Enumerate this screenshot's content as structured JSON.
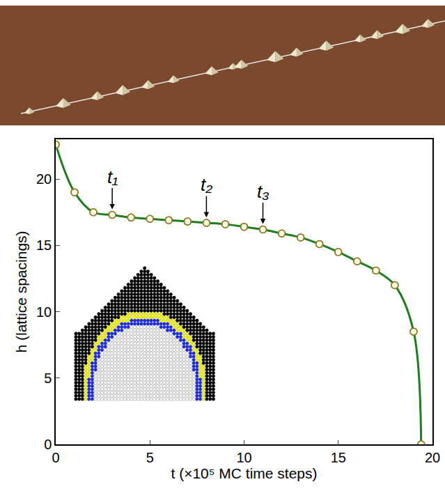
{
  "chart_data": {
    "type": "line",
    "x_label": "t (×10⁵ MC time steps)",
    "y_label": "h (lattice spacings)",
    "series": [
      {
        "name": "h",
        "color": "#1e7d1e",
        "marker": "circle-open",
        "line_style": "spline",
        "x": [
          0,
          1,
          2,
          3,
          4,
          5,
          6,
          7,
          8,
          9,
          10,
          11,
          12,
          13,
          14,
          15,
          16,
          17,
          18,
          19,
          19.4
        ],
        "values": [
          22.6,
          19.0,
          17.5,
          17.3,
          17.1,
          17.0,
          16.9,
          16.8,
          16.7,
          16.6,
          16.4,
          16.2,
          15.9,
          15.6,
          15.1,
          14.5,
          13.8,
          13.1,
          12.0,
          8.5,
          0
        ]
      }
    ],
    "annotations": [
      {
        "text": "t₁",
        "x": 3,
        "y": 17.3
      },
      {
        "text": "t₂",
        "x": 8,
        "y": 16.7
      },
      {
        "text": "t₃",
        "x": 11,
        "y": 16.2
      }
    ],
    "xlim": [
      0,
      20
    ],
    "xticks": [
      0,
      5,
      10,
      15,
      20
    ],
    "ylim": [
      0,
      23
    ],
    "yticks": [
      0,
      5,
      10,
      15,
      20
    ],
    "grid": false
  }
}
